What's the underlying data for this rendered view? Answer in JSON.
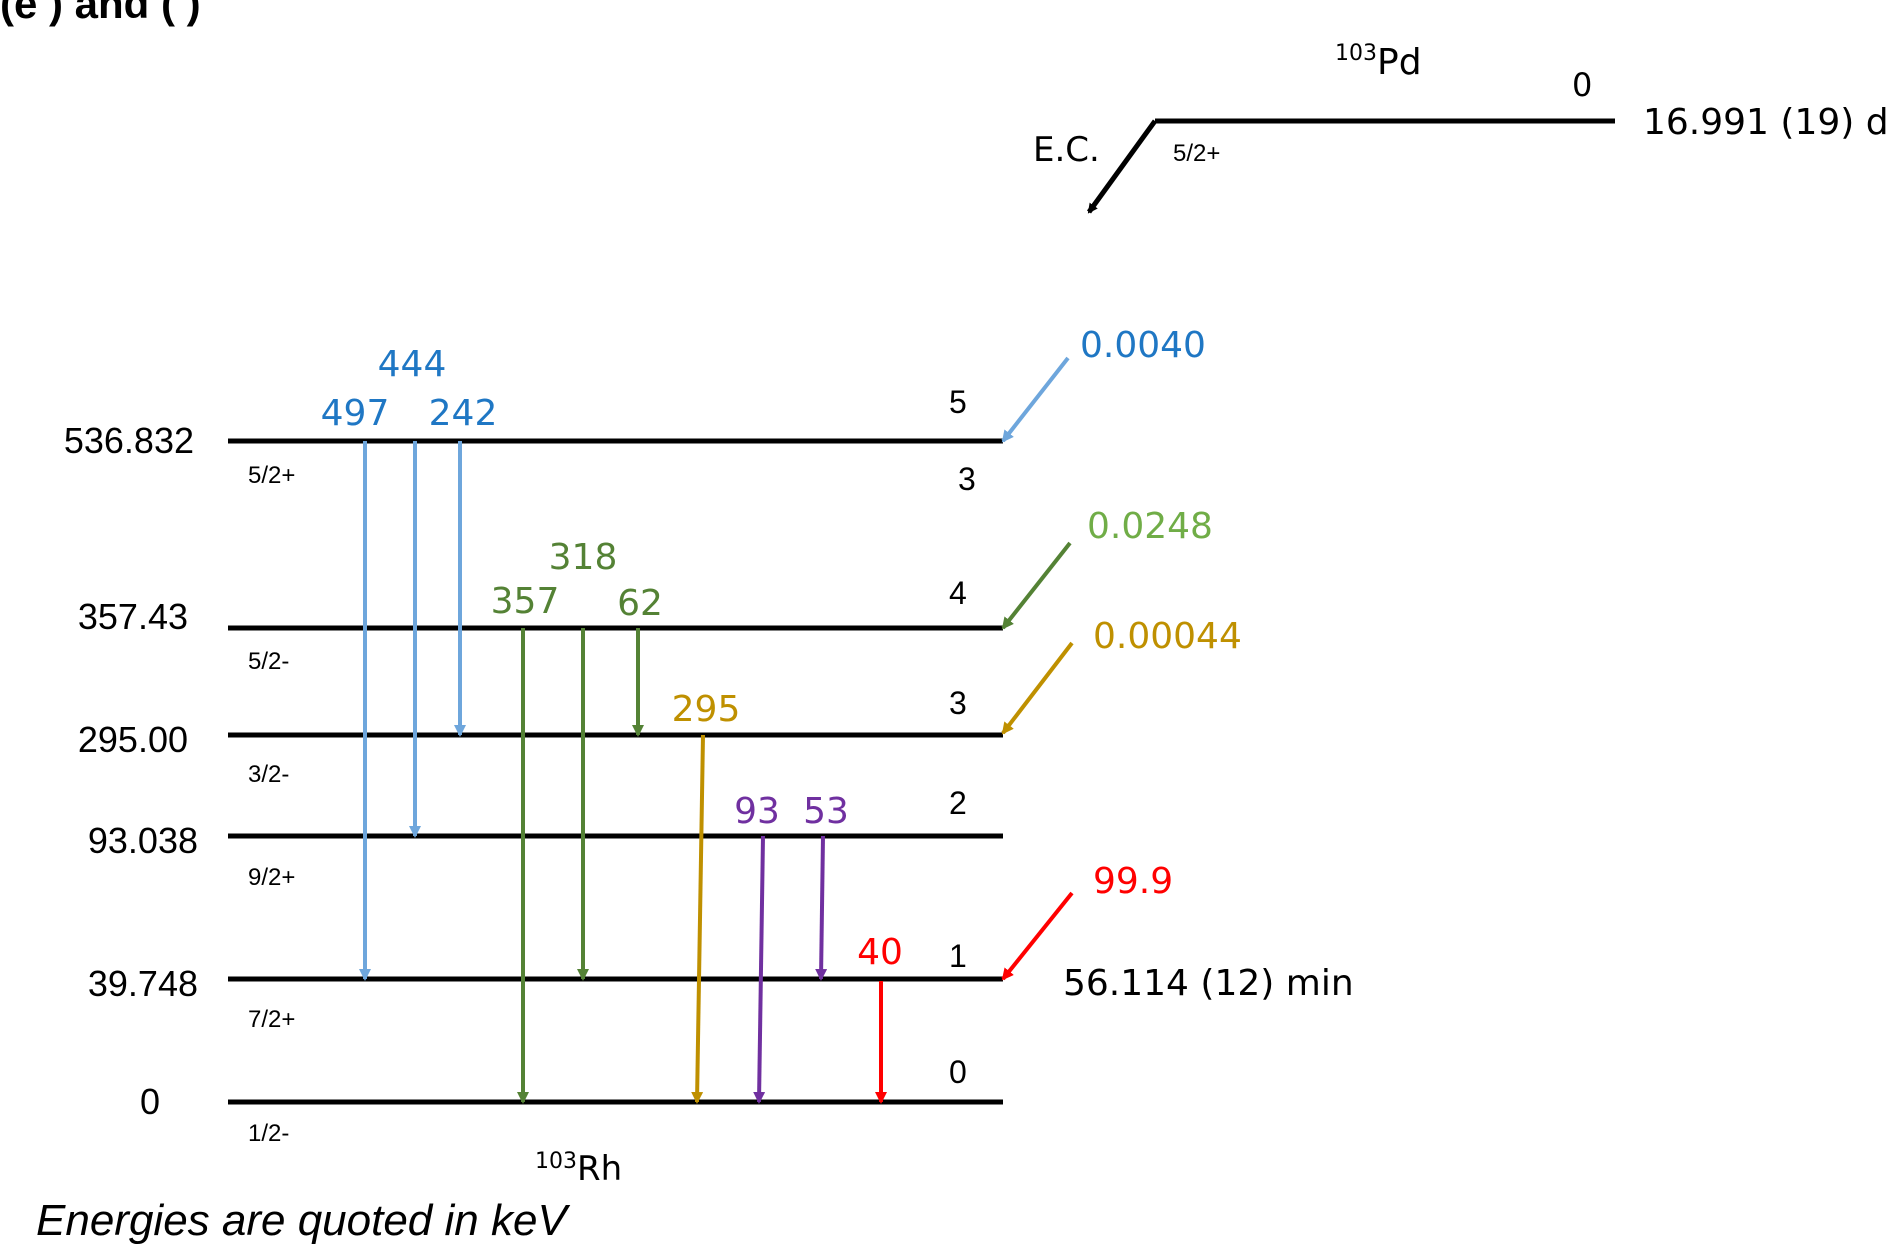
{
  "header_fragment": "(e ) and ( )",
  "parent": {
    "mass_number": "103",
    "symbol": "Pd",
    "level_index": "0",
    "spin": "5/2+",
    "half_life": "16.991 (19) d",
    "decay_mode": "E.C."
  },
  "daughter": {
    "mass_number": "103",
    "symbol": "Rh",
    "levels": [
      {
        "energy": "536.832",
        "spin": "5/2+",
        "index": "5",
        "branching": "3",
        "feeding": "0.0040",
        "feeding_color": "#1f77c4",
        "arrow_color": "#6ea6dc"
      },
      {
        "energy": "357.43",
        "spin": "5/2-",
        "index": "4",
        "feeding": "0.0248",
        "feeding_color": "#70ad47",
        "arrow_color": "#548235"
      },
      {
        "energy": "295.00",
        "spin": "3/2-",
        "index": "3",
        "feeding": "0.00044",
        "feeding_color": "#bf9000",
        "arrow_color": "#bf9000"
      },
      {
        "energy": "93.038",
        "spin": "9/2+",
        "index": "2"
      },
      {
        "energy": "39.748",
        "spin": "7/2+",
        "index": "1",
        "feeding": "99.9",
        "feeding_color": "#ff0000",
        "arrow_color": "#ff0000",
        "half_life": "56.114 (12) min"
      },
      {
        "energy": "0",
        "spin": "1/2-",
        "index": "0"
      }
    ]
  },
  "transitions": [
    {
      "label": "497",
      "from": "536.832",
      "to": "39.748",
      "color": "#6ea6dc",
      "label_color": "#1f77c4"
    },
    {
      "label": "444",
      "from": "536.832",
      "to": "93.038",
      "color": "#6ea6dc",
      "label_color": "#1f77c4"
    },
    {
      "label": "242",
      "from": "536.832",
      "to": "295.00",
      "color": "#6ea6dc",
      "label_color": "#1f77c4"
    },
    {
      "label": "357",
      "from": "357.43",
      "to": "0",
      "color": "#548235",
      "label_color": "#548235"
    },
    {
      "label": "318",
      "from": "357.43",
      "to": "39.748",
      "color": "#548235",
      "label_color": "#548235"
    },
    {
      "label": "62",
      "from": "357.43",
      "to": "295.00",
      "color": "#548235",
      "label_color": "#548235"
    },
    {
      "label": "295",
      "from": "295.00",
      "to": "0",
      "color": "#bf9000",
      "label_color": "#bf9000"
    },
    {
      "label": "93",
      "from": "93.038",
      "to": "0",
      "color": "#7030a0",
      "label_color": "#7030a0"
    },
    {
      "label": "53",
      "from": "93.038",
      "to": "39.748",
      "color": "#7030a0",
      "label_color": "#7030a0"
    },
    {
      "label": "40",
      "from": "39.748",
      "to": "0",
      "color": "#ff0000",
      "label_color": "#ff0000"
    }
  ],
  "footnote": "Energies are quoted in keV"
}
